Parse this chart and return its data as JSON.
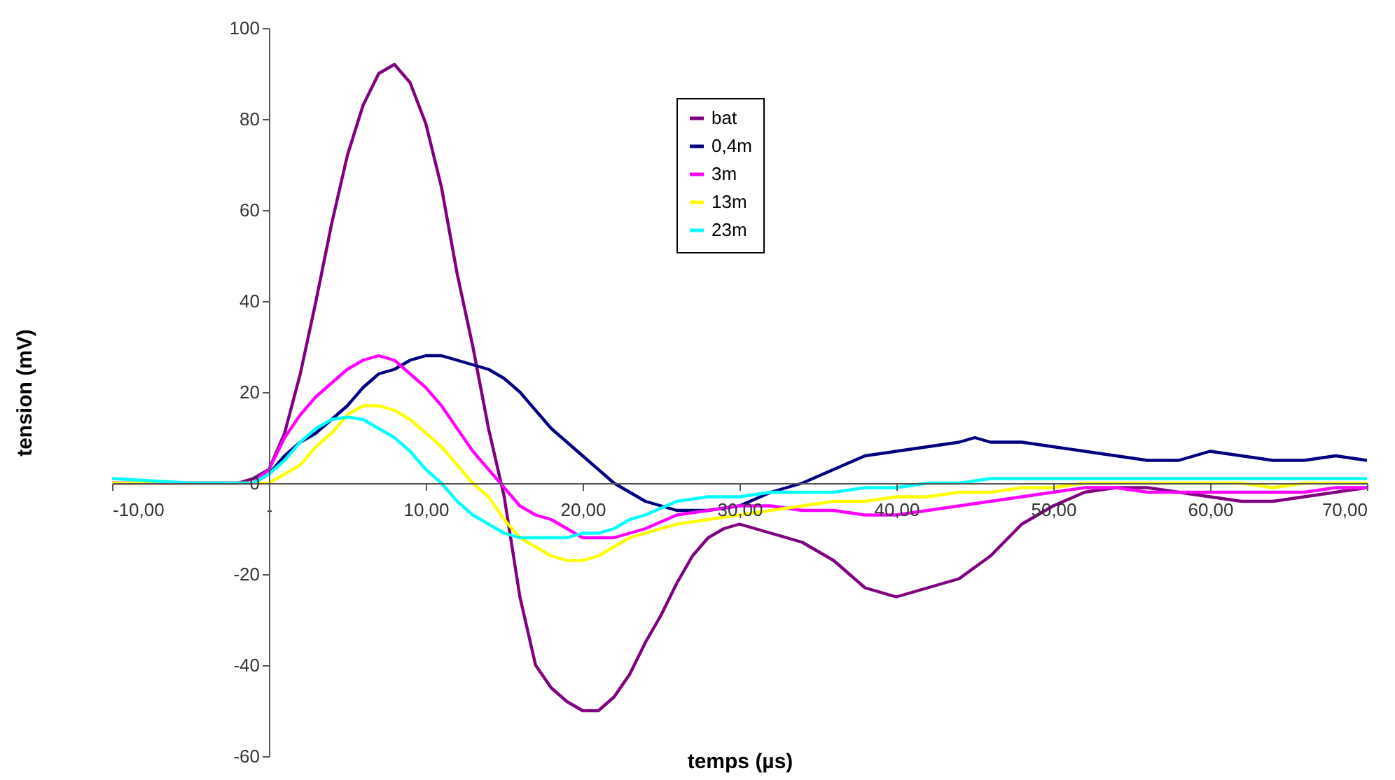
{
  "chart_data": {
    "type": "line",
    "xlabel": "temps (µs)",
    "ylabel": "tension (mV)",
    "xlim": [
      -10,
      70
    ],
    "ylim": [
      -60,
      100
    ],
    "xticks": [
      {
        "value": -10,
        "label": "-10,00"
      },
      {
        "value": 0,
        "label": "-"
      },
      {
        "value": 10,
        "label": "10,00"
      },
      {
        "value": 20,
        "label": "20,00"
      },
      {
        "value": 30,
        "label": "30,00"
      },
      {
        "value": 40,
        "label": "40,00"
      },
      {
        "value": 50,
        "label": "50,00"
      },
      {
        "value": 60,
        "label": "60,00"
      },
      {
        "value": 70,
        "label": "70,00"
      }
    ],
    "yticks": [
      -60,
      -40,
      -20,
      0,
      20,
      40,
      60,
      80,
      100
    ],
    "legend": "top",
    "series": [
      {
        "name": "bat",
        "color": "#800080",
        "x": [
          -10,
          -6,
          -2,
          -1,
          0,
          1,
          2,
          3,
          4,
          5,
          6,
          7,
          8,
          9,
          10,
          11,
          12,
          13,
          14,
          15,
          16,
          17,
          18,
          19,
          20,
          21,
          22,
          23,
          24,
          25,
          26,
          27,
          28,
          29,
          30,
          32,
          34,
          36,
          38,
          40,
          42,
          44,
          46,
          48,
          50,
          52,
          54,
          56,
          58,
          60,
          62,
          64,
          66,
          68,
          70
        ],
        "values": [
          0,
          0,
          0,
          1,
          3,
          11,
          24,
          40,
          57,
          72,
          83,
          90,
          92,
          88,
          79,
          65,
          46,
          30,
          12,
          -3,
          -25,
          -40,
          -45,
          -48,
          -50,
          -50,
          -47,
          -42,
          -35,
          -29,
          -22,
          -16,
          -12,
          -10,
          -9,
          -11,
          -13,
          -17,
          -23,
          -25,
          -23,
          -21,
          -16,
          -9,
          -5,
          -2,
          -1,
          -1,
          -2,
          -3,
          -4,
          -4,
          -3,
          -2,
          -1
        ]
      },
      {
        "name": "0,4m",
        "color": "#000080",
        "x": [
          -1,
          0,
          1,
          2,
          3,
          4,
          5,
          6,
          7,
          8,
          9,
          10,
          11,
          12,
          13,
          14,
          15,
          16,
          17,
          18,
          19,
          20,
          21,
          22,
          23,
          24,
          25,
          26,
          28,
          30,
          32,
          34,
          36,
          38,
          40,
          42,
          44,
          45,
          46,
          48,
          50,
          52,
          54,
          56,
          58,
          60,
          62,
          64,
          66,
          68,
          70
        ],
        "values": [
          0,
          2,
          6,
          9,
          11,
          14,
          17,
          21,
          24,
          25,
          27,
          28,
          28,
          27,
          26,
          25,
          23,
          20,
          16,
          12,
          9,
          6,
          3,
          0,
          -2,
          -4,
          -5,
          -6,
          -6,
          -5,
          -2,
          0,
          3,
          6,
          7,
          8,
          9,
          10,
          9,
          9,
          8,
          7,
          6,
          5,
          5,
          7,
          6,
          5,
          5,
          6,
          5
        ]
      },
      {
        "name": "3m",
        "color": "#ff00ff",
        "x": [
          -10,
          -5,
          -1,
          0,
          1,
          2,
          3,
          4,
          5,
          6,
          7,
          8,
          9,
          10,
          11,
          12,
          13,
          14,
          15,
          16,
          17,
          18,
          19,
          20,
          21,
          22,
          23,
          24,
          26,
          28,
          30,
          32,
          34,
          36,
          38,
          40,
          42,
          44,
          46,
          48,
          50,
          52,
          54,
          56,
          58,
          60,
          62,
          64,
          66,
          68,
          70
        ],
        "values": [
          0,
          0,
          0,
          3,
          10,
          15,
          19,
          22,
          25,
          27,
          28,
          27,
          24,
          21,
          17,
          12,
          7,
          3,
          -1,
          -5,
          -7,
          -8,
          -10,
          -12,
          -12,
          -12,
          -11,
          -10,
          -7,
          -6,
          -5,
          -5,
          -6,
          -6,
          -7,
          -7,
          -6,
          -5,
          -4,
          -3,
          -2,
          -1,
          -1,
          -2,
          -2,
          -2,
          -2,
          -2,
          -2,
          -1,
          -1
        ]
      },
      {
        "name": "13m",
        "color": "#ffff00",
        "x": [
          -10,
          -5,
          -1,
          0,
          1,
          2,
          3,
          4,
          5,
          6,
          7,
          8,
          9,
          10,
          11,
          12,
          13,
          14,
          15,
          16,
          17,
          18,
          19,
          20,
          21,
          22,
          23,
          24,
          26,
          28,
          30,
          32,
          34,
          36,
          38,
          40,
          42,
          44,
          46,
          48,
          50,
          52,
          54,
          56,
          58,
          60,
          62,
          64,
          66,
          68,
          70
        ],
        "values": [
          0,
          0,
          0,
          0,
          2,
          4,
          8,
          11,
          15,
          17,
          17,
          16,
          14,
          11,
          8,
          4,
          0,
          -3,
          -8,
          -12,
          -14,
          -16,
          -17,
          -17,
          -16,
          -14,
          -12,
          -11,
          -9,
          -8,
          -7,
          -6,
          -5,
          -4,
          -4,
          -3,
          -3,
          -2,
          -2,
          -1,
          -1,
          0,
          0,
          0,
          0,
          0,
          0,
          -1,
          0,
          0,
          0
        ]
      },
      {
        "name": "23m",
        "color": "#00ffff",
        "x": [
          -10,
          -5,
          -1,
          0,
          1,
          2,
          3,
          4,
          5,
          6,
          7,
          8,
          9,
          10,
          11,
          12,
          13,
          14,
          15,
          16,
          17,
          18,
          19,
          20,
          21,
          22,
          23,
          24,
          26,
          28,
          30,
          32,
          34,
          36,
          38,
          40,
          42,
          44,
          46,
          48,
          50,
          52,
          54,
          56,
          58,
          60,
          62,
          64,
          66,
          68,
          70
        ],
        "values": [
          1,
          0,
          0,
          2,
          5,
          9,
          12,
          14,
          14.5,
          14,
          12,
          10,
          7,
          3,
          0,
          -4,
          -7,
          -9,
          -11,
          -12,
          -12,
          -12,
          -12,
          -11,
          -11,
          -10,
          -8,
          -7,
          -4,
          -3,
          -3,
          -2,
          -2,
          -2,
          -1,
          -1,
          0,
          0,
          1,
          1,
          1,
          1,
          1,
          1,
          1,
          1,
          1,
          1,
          1,
          1,
          1
        ]
      }
    ]
  }
}
